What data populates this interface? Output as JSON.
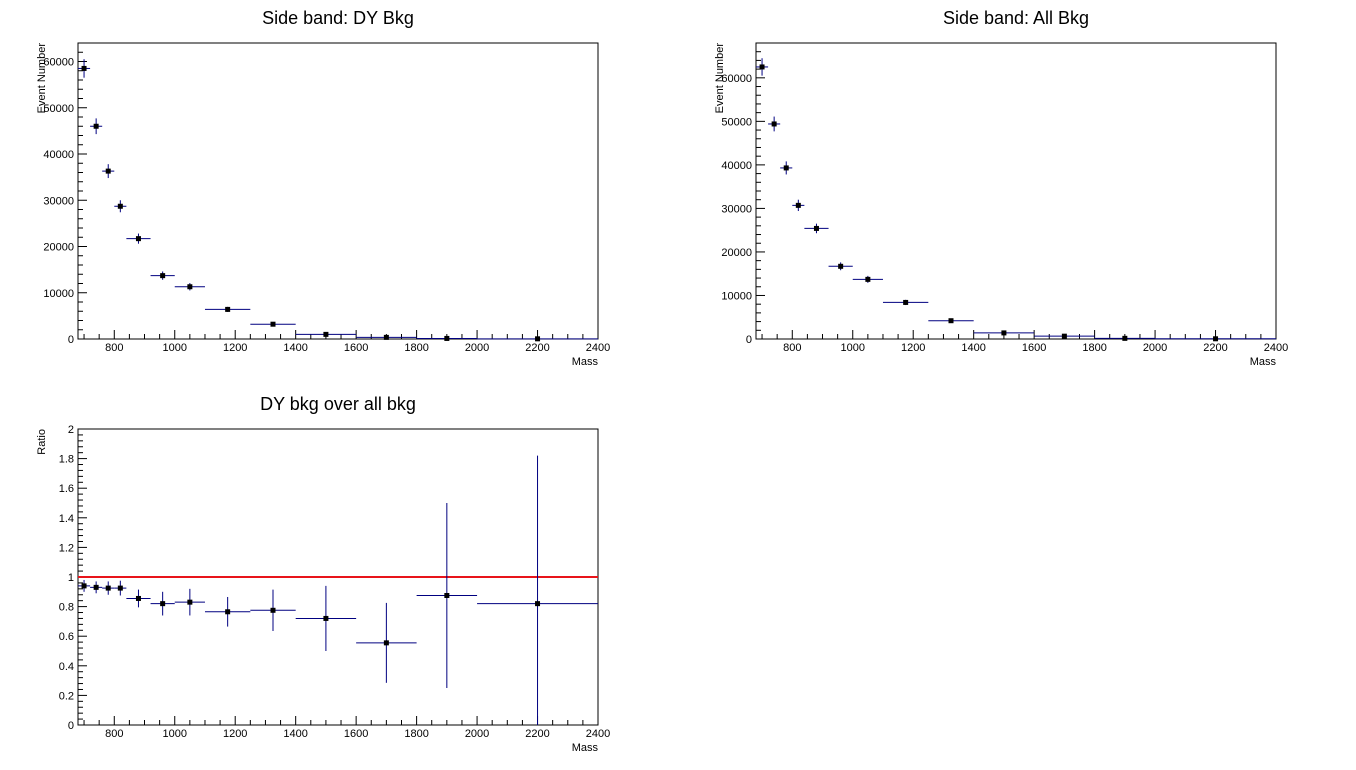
{
  "chart_data": [
    {
      "type": "scatter",
      "title": "Side band: DY Bkg",
      "xlabel": "Mass",
      "ylabel": "Event Number",
      "xlim": [
        680,
        2400
      ],
      "ylim": [
        0,
        64000
      ],
      "xticks": [
        800,
        1000,
        1200,
        1400,
        1600,
        1800,
        2000,
        2200,
        2400
      ],
      "yticks": [
        0,
        10000,
        20000,
        30000,
        40000,
        50000,
        60000
      ],
      "ytick_labels": [
        "0",
        "10000",
        "20000",
        "30000",
        "40000",
        "50000",
        "60000"
      ],
      "grid": false,
      "points": [
        {
          "x": 700,
          "y": 58500,
          "xlo": 680,
          "xhi": 720,
          "yerr": 2000
        },
        {
          "x": 740,
          "y": 46000,
          "xlo": 720,
          "xhi": 760,
          "yerr": 1700
        },
        {
          "x": 780,
          "y": 36300,
          "xlo": 760,
          "xhi": 800,
          "yerr": 1500
        },
        {
          "x": 820,
          "y": 28700,
          "xlo": 800,
          "xhi": 840,
          "yerr": 1300
        },
        {
          "x": 880,
          "y": 21700,
          "xlo": 840,
          "xhi": 920,
          "yerr": 1100
        },
        {
          "x": 960,
          "y": 13700,
          "xlo": 920,
          "xhi": 1000,
          "yerr": 900
        },
        {
          "x": 1050,
          "y": 11300,
          "xlo": 1000,
          "xhi": 1100,
          "yerr": 800
        },
        {
          "x": 1175,
          "y": 6400,
          "xlo": 1100,
          "xhi": 1250,
          "yerr": 550
        },
        {
          "x": 1325,
          "y": 3200,
          "xlo": 1250,
          "xhi": 1400,
          "yerr": 400
        },
        {
          "x": 1500,
          "y": 1000,
          "xlo": 1400,
          "xhi": 1600,
          "yerr": 250
        },
        {
          "x": 1700,
          "y": 350,
          "xlo": 1600,
          "xhi": 1800,
          "yerr": 150
        },
        {
          "x": 1900,
          "y": 120,
          "xlo": 1800,
          "xhi": 2000,
          "yerr": 80
        },
        {
          "x": 2200,
          "y": 40,
          "xlo": 2000,
          "xhi": 2400,
          "yerr": 40
        }
      ]
    },
    {
      "type": "scatter",
      "title": "Side band: All Bkg",
      "xlabel": "Mass",
      "ylabel": "Event Number",
      "xlim": [
        680,
        2400
      ],
      "ylim": [
        0,
        68000
      ],
      "xticks": [
        800,
        1000,
        1200,
        1400,
        1600,
        1800,
        2000,
        2200,
        2400
      ],
      "yticks": [
        0,
        10000,
        20000,
        30000,
        40000,
        50000,
        60000
      ],
      "ytick_labels": [
        "0",
        "10000",
        "20000",
        "30000",
        "40000",
        "50000",
        "60000"
      ],
      "grid": false,
      "points": [
        {
          "x": 700,
          "y": 62500,
          "xlo": 680,
          "xhi": 720,
          "yerr": 2000
        },
        {
          "x": 740,
          "y": 49400,
          "xlo": 720,
          "xhi": 760,
          "yerr": 1700
        },
        {
          "x": 780,
          "y": 39300,
          "xlo": 760,
          "xhi": 800,
          "yerr": 1500
        },
        {
          "x": 820,
          "y": 30700,
          "xlo": 800,
          "xhi": 840,
          "yerr": 1300
        },
        {
          "x": 880,
          "y": 25400,
          "xlo": 840,
          "xhi": 920,
          "yerr": 1100
        },
        {
          "x": 960,
          "y": 16700,
          "xlo": 920,
          "xhi": 1000,
          "yerr": 900
        },
        {
          "x": 1050,
          "y": 13700,
          "xlo": 1000,
          "xhi": 1100,
          "yerr": 800
        },
        {
          "x": 1175,
          "y": 8400,
          "xlo": 1100,
          "xhi": 1250,
          "yerr": 600
        },
        {
          "x": 1325,
          "y": 4200,
          "xlo": 1250,
          "xhi": 1400,
          "yerr": 450
        },
        {
          "x": 1500,
          "y": 1400,
          "xlo": 1400,
          "xhi": 1600,
          "yerr": 300
        },
        {
          "x": 1700,
          "y": 650,
          "xlo": 1600,
          "xhi": 1800,
          "yerr": 200
        },
        {
          "x": 1900,
          "y": 150,
          "xlo": 1800,
          "xhi": 2000,
          "yerr": 90
        },
        {
          "x": 2200,
          "y": 50,
          "xlo": 2000,
          "xhi": 2400,
          "yerr": 50
        }
      ]
    },
    {
      "type": "scatter",
      "title": "DY bkg over all bkg",
      "xlabel": "Mass",
      "ylabel": "Ratio",
      "xlim": [
        680,
        2400
      ],
      "ylim": [
        0,
        2
      ],
      "xticks": [
        800,
        1000,
        1200,
        1400,
        1600,
        1800,
        2000,
        2200,
        2400
      ],
      "yticks": [
        0,
        0.2,
        0.4,
        0.6,
        0.8,
        1,
        1.2,
        1.4,
        1.6,
        1.8,
        2
      ],
      "ytick_labels": [
        "0",
        "0.2",
        "0.4",
        "0.6",
        "0.8",
        "1",
        "1.2",
        "1.4",
        "1.6",
        "1.8",
        "2"
      ],
      "grid": false,
      "reference_line": {
        "y": 1,
        "color": "#e8141a"
      },
      "points": [
        {
          "x": 700,
          "y": 0.94,
          "xlo": 680,
          "xhi": 720,
          "yerr": 0.04
        },
        {
          "x": 740,
          "y": 0.93,
          "xlo": 720,
          "xhi": 760,
          "yerr": 0.04
        },
        {
          "x": 780,
          "y": 0.925,
          "xlo": 760,
          "xhi": 800,
          "yerr": 0.045
        },
        {
          "x": 820,
          "y": 0.925,
          "xlo": 800,
          "xhi": 840,
          "yerr": 0.05
        },
        {
          "x": 880,
          "y": 0.855,
          "xlo": 840,
          "xhi": 920,
          "yerr": 0.06
        },
        {
          "x": 960,
          "y": 0.82,
          "xlo": 920,
          "xhi": 1000,
          "yerr": 0.08
        },
        {
          "x": 1050,
          "y": 0.83,
          "xlo": 1000,
          "xhi": 1100,
          "yerr": 0.09
        },
        {
          "x": 1175,
          "y": 0.765,
          "xlo": 1100,
          "xhi": 1250,
          "yerr": 0.1
        },
        {
          "x": 1325,
          "y": 0.775,
          "xlo": 1250,
          "xhi": 1400,
          "yerr": 0.14
        },
        {
          "x": 1500,
          "y": 0.72,
          "xlo": 1400,
          "xhi": 1600,
          "yerr": 0.22
        },
        {
          "x": 1700,
          "y": 0.555,
          "xlo": 1600,
          "xhi": 1800,
          "yerr": 0.27
        },
        {
          "x": 1900,
          "y": 0.875,
          "xlo": 1800,
          "xhi": 2000,
          "yerr": 0.625
        },
        {
          "x": 2200,
          "y": 0.82,
          "xlo": 2000,
          "xhi": 2400,
          "yerr": 1.0
        }
      ]
    }
  ],
  "colors": {
    "frame": "#000000",
    "error_bar": "#000080",
    "marker": "#000000",
    "reference_line": "#e8141a"
  }
}
